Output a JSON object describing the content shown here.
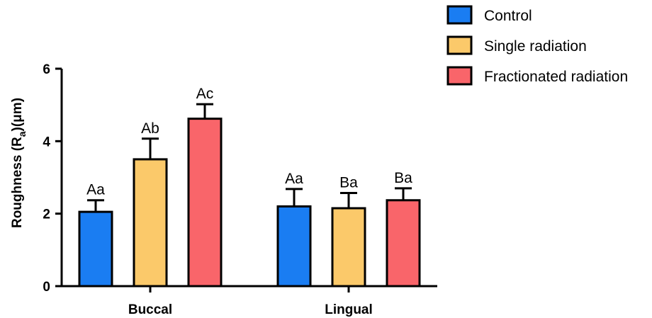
{
  "chart_data": {
    "type": "bar",
    "categories": [
      "Buccal",
      "Lingual"
    ],
    "ylabel": "Roughness (R",
    "ylabel_sub": "a",
    "ylabel_end": ")(μm)",
    "ylim": [
      0,
      6
    ],
    "yticks": [
      0,
      2,
      4,
      6
    ],
    "grid": false,
    "legend_position": "top-right",
    "series": [
      {
        "name": "Control",
        "color": "#1a7df2",
        "values": [
          2.05,
          2.2
        ],
        "errors": [
          0.32,
          0.48
        ],
        "labels": [
          "Aa",
          "Aa"
        ]
      },
      {
        "name": "Single radiation",
        "color": "#fbc96a",
        "values": [
          3.5,
          2.15
        ],
        "errors": [
          0.57,
          0.42
        ],
        "labels": [
          "Ab",
          "Ba"
        ]
      },
      {
        "name": "Fractionated radiation",
        "color": "#f9656a",
        "values": [
          4.62,
          2.37
        ],
        "errors": [
          0.4,
          0.33
        ],
        "labels": [
          "Ac",
          "Ba"
        ]
      }
    ]
  }
}
